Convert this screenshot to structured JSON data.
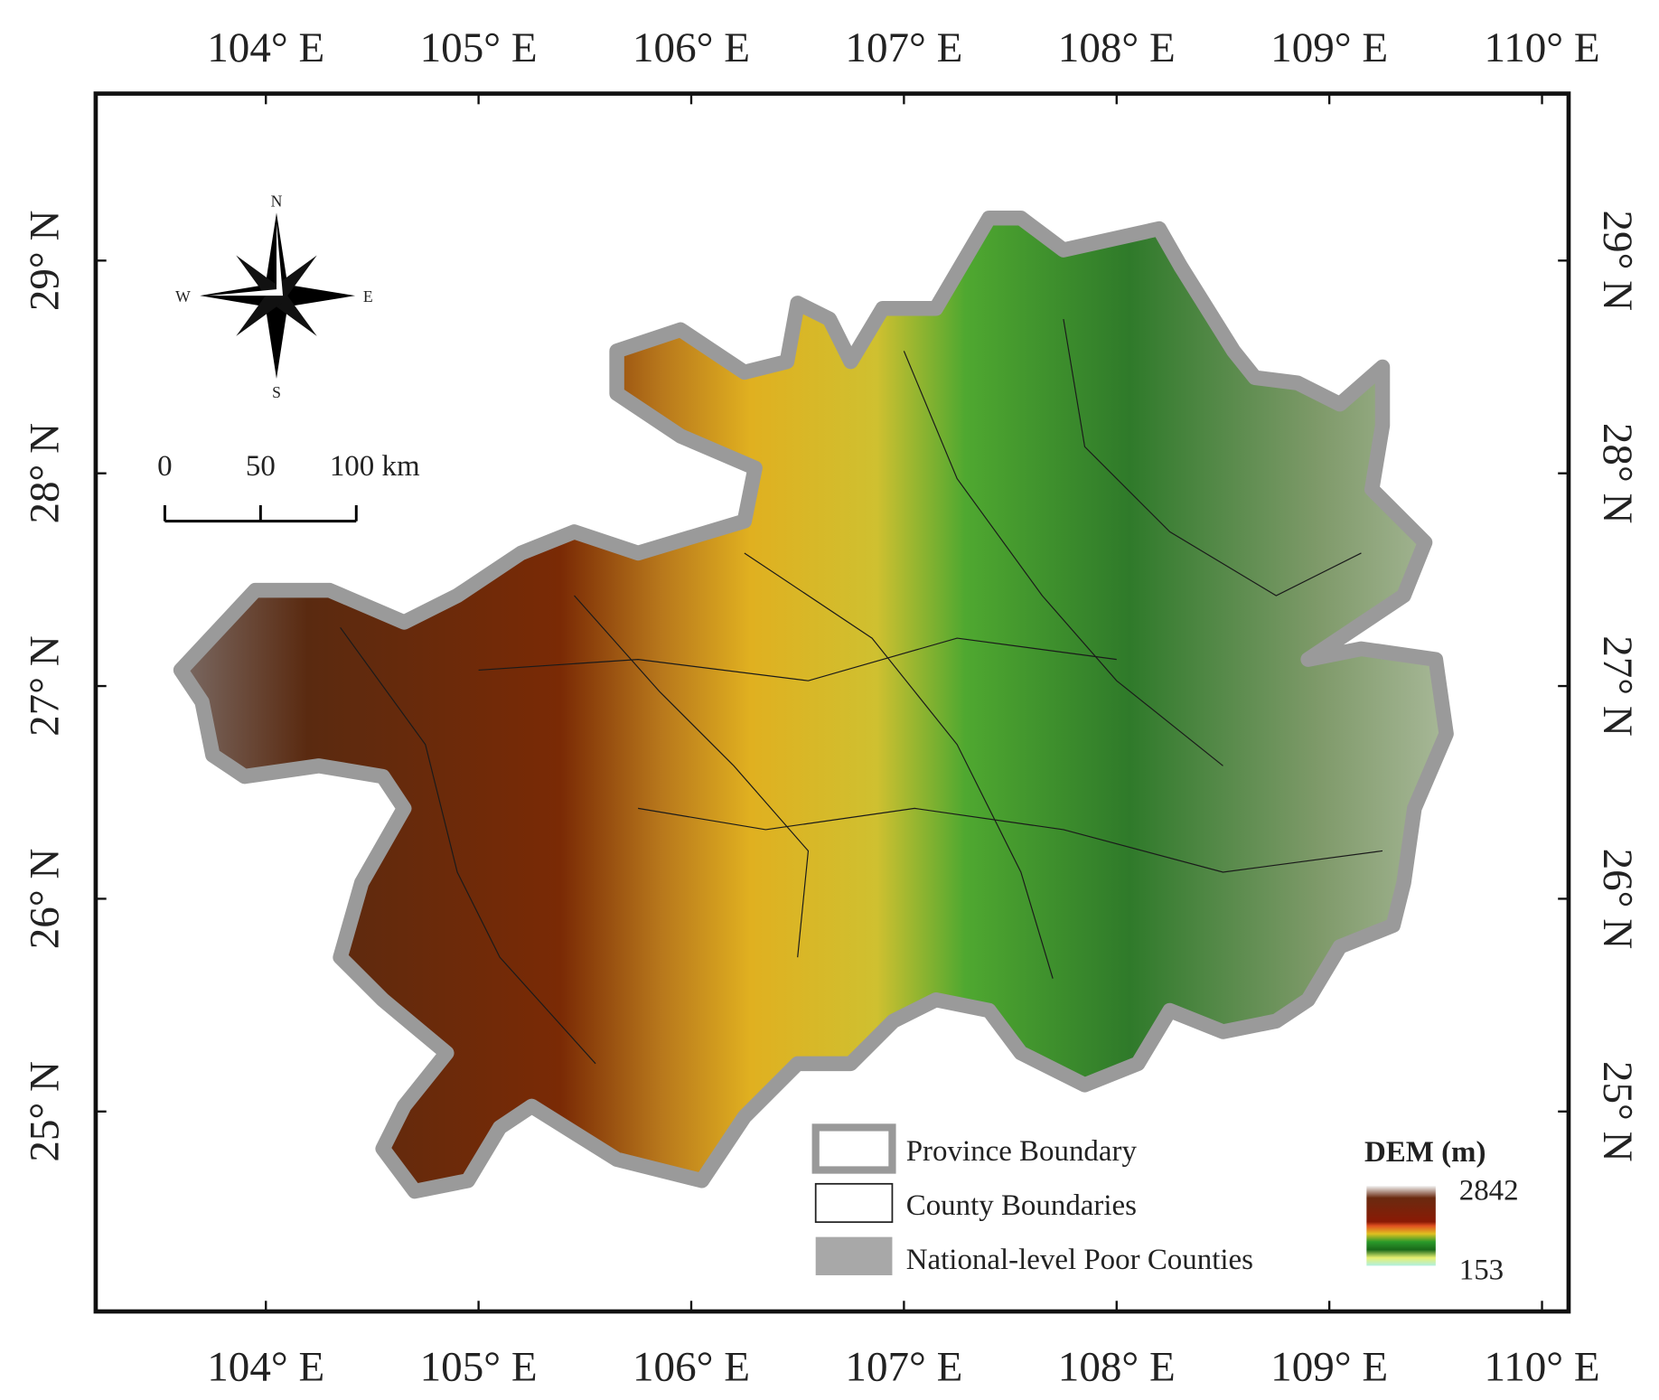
{
  "map": {
    "longitude_labels": [
      "104° E",
      "105° E",
      "106° E",
      "107° E",
      "108° E",
      "109° E",
      "110° E"
    ],
    "latitude_labels": [
      "29° N",
      "28° N",
      "27° N",
      "26° N",
      "25° N"
    ],
    "compass": {
      "n": "N",
      "s": "S",
      "w": "W",
      "e": "E"
    },
    "scale_bar": [
      "0",
      "50",
      "100 km"
    ],
    "legend": {
      "items": [
        "Province Boundary",
        "County Boundaries",
        "National-level Poor Counties"
      ],
      "dem_title": "DEM (m)",
      "dem_max": "2842",
      "dem_min": "153"
    }
  }
}
